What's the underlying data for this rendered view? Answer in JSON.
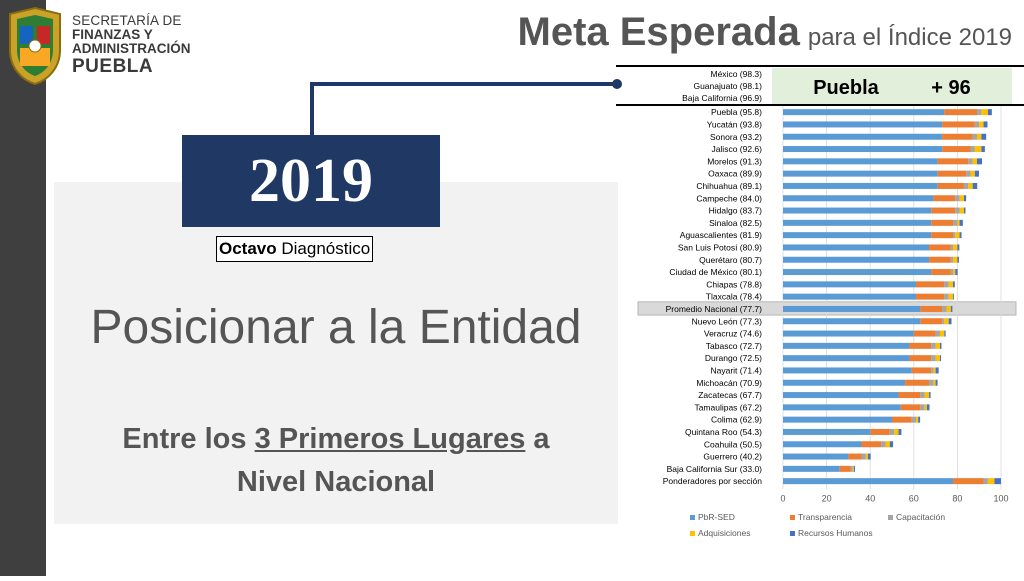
{
  "header": {
    "org_line1": "SECRETARÍA DE",
    "org_line2": "FINANZAS Y",
    "org_line3": "ADMINISTRACIÓN",
    "org_line4": "PUEBLA",
    "title_main": "Meta Esperada",
    "title_sub": "para el  Índice 2019"
  },
  "left": {
    "year": "2019",
    "diagnostic_bold": "Octavo",
    "diagnostic_rest": " Diagnóstico",
    "position_text": "Posicionar a la Entidad",
    "goal_pre": "Entre los ",
    "goal_highlight": "3 Primeros Lugares",
    "goal_post": " a",
    "goal_line2": "Nivel Nacional"
  },
  "callout": {
    "state": "Puebla",
    "target": "+ 96"
  },
  "colors": {
    "PbR-SED": "#5b9bd5",
    "Transparencia": "#ed7d31",
    "Capacitación": "#a5a5a5",
    "Adquisiciones": "#ffc000",
    "Recursos Humanos": "#4472c4",
    "highlight_row": "#d9d9d9",
    "year_box": "#1f3864",
    "callout_box": "#e2efda"
  },
  "chart_data": {
    "type": "bar",
    "orientation": "horizontal",
    "stacked": true,
    "title": "",
    "xlabel": "",
    "ylabel": "",
    "xlim": [
      0,
      100
    ],
    "x_ticks": [
      0,
      20,
      40,
      60,
      80,
      100
    ],
    "grid": true,
    "legend_position": "bottom",
    "top_labels": [
      "México (98.3)",
      "Guanajuato (98.1)",
      "Baja California (96.9)"
    ],
    "categories": [
      "Puebla (95.8)",
      "Yucatán (93.8)",
      "Sonora (93.2)",
      "Jalisco (92.6)",
      "Morelos (91.3)",
      "Oaxaca (89.9)",
      "Chihuahua (89.1)",
      "Campeche (84.0)",
      "Hidalgo (83.7)",
      "Sinaloa (82.5)",
      "Aguascalientes (81.9)",
      "San Luis Potosí (80.9)",
      "Querétaro (80.7)",
      "Ciudad de México (80.1)",
      "Chiapas (78.8)",
      "Tlaxcala (78.4)",
      "Promedio Nacional (77.7)",
      "Nuevo León (77.3)",
      "Veracruz (74.6)",
      "Tabasco (72.7)",
      "Durango (72.5)",
      "Nayarit (71.4)",
      "Michoacán (70.9)",
      "Zacatecas (67.7)",
      "Tamaulipas (67.2)",
      "Colima (62.9)",
      "Quintana Roo (54.3)",
      "Coahuila (50.5)",
      "Guerrero (40.2)",
      "Baja California Sur (33.0)",
      "Ponderadores por sección"
    ],
    "highlight_category": "Promedio Nacional (77.7)",
    "series": [
      {
        "name": "PbR-SED",
        "values": [
          74,
          73,
          73,
          73,
          71,
          71,
          71,
          69,
          68,
          68,
          68,
          67,
          67,
          68,
          61,
          61,
          63,
          63,
          60,
          58,
          58,
          59,
          56,
          53,
          54,
          50,
          40,
          36,
          30,
          26,
          78
        ]
      },
      {
        "name": "Transparencia",
        "values": [
          15,
          15,
          14,
          13,
          14,
          13,
          12,
          10,
          11,
          10,
          10,
          10,
          10,
          9,
          13,
          13,
          10,
          10,
          10,
          10,
          10,
          9,
          11,
          10,
          9,
          9,
          9,
          9,
          6,
          5,
          14
        ]
      },
      {
        "name": "Capacitación",
        "values": [
          2,
          2,
          2,
          2,
          2,
          2,
          2,
          2,
          2,
          2,
          1,
          1,
          1,
          1,
          2,
          2,
          2,
          1,
          2,
          2,
          2,
          1,
          2,
          2,
          2,
          2,
          2,
          2,
          2,
          1,
          2
        ]
      },
      {
        "name": "Adquisiciones",
        "values": [
          3,
          2,
          2,
          3,
          2,
          2,
          2,
          2,
          2,
          1,
          2,
          2,
          2,
          1,
          2,
          2,
          2,
          2,
          2,
          2,
          2,
          1,
          1,
          2,
          1,
          1,
          2,
          2,
          1,
          0.5,
          3
        ]
      },
      {
        "name": "Recursos Humanos",
        "values": [
          1.8,
          1.8,
          2.2,
          1.6,
          2.3,
          1.9,
          2.1,
          1,
          0.7,
          1.5,
          0.9,
          0.9,
          0.7,
          1.1,
          0.8,
          0.4,
          0.7,
          1.3,
          0.6,
          0.7,
          0.5,
          1.4,
          0.9,
          0.7,
          1.2,
          0.9,
          1.3,
          1.5,
          1.2,
          0.5,
          3
        ]
      }
    ]
  }
}
